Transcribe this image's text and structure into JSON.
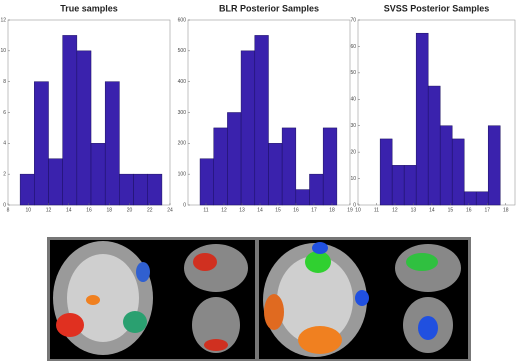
{
  "chart_data": [
    {
      "type": "histogram",
      "title": "True samples",
      "color": "#3a22ad",
      "bins": [
        9.2,
        10.6,
        12,
        13.4,
        14.8,
        16.2,
        17.6,
        19,
        20.4,
        21.8,
        23.2
      ],
      "counts": [
        2,
        8,
        3,
        11,
        10,
        4,
        8,
        2,
        2,
        2
      ],
      "xlim": [
        8,
        24
      ],
      "xticks": [
        8,
        10,
        12,
        14,
        16,
        18,
        20,
        22,
        24
      ],
      "ylim": [
        0,
        12
      ],
      "yticks": [
        0,
        2,
        4,
        6,
        8,
        10,
        12
      ]
    },
    {
      "type": "histogram",
      "title": "BLR Posterior Samples",
      "color": "#3a22ad",
      "bins": [
        10.67,
        11.43,
        12.19,
        12.95,
        13.71,
        14.47,
        15.23,
        15.99,
        16.75,
        17.51,
        18.27
      ],
      "counts": [
        150,
        250,
        300,
        500,
        550,
        200,
        250,
        50,
        100,
        250
      ],
      "xlim": [
        10,
        19
      ],
      "xticks": [
        11,
        12,
        13,
        14,
        15,
        16,
        17,
        18,
        19
      ],
      "ylim": [
        0,
        600
      ],
      "yticks": [
        0,
        100,
        200,
        300,
        400,
        500,
        600
      ]
    },
    {
      "type": "histogram",
      "title": "SVSS Posterior Samples",
      "color": "#3a22ad",
      "bins": [
        11.2,
        11.85,
        12.5,
        13.15,
        13.8,
        14.45,
        15.1,
        15.75,
        16.4,
        17.05,
        17.7
      ],
      "counts": [
        25,
        15,
        15,
        65,
        45,
        30,
        25,
        5,
        5,
        30
      ],
      "xlim": [
        10,
        18.5
      ],
      "xticks": [
        10,
        11,
        12,
        13,
        14,
        15,
        16,
        17,
        18
      ],
      "ylim": [
        0,
        70
      ],
      "yticks": [
        0,
        10,
        20,
        30,
        40,
        50,
        60,
        70
      ]
    }
  ]
}
